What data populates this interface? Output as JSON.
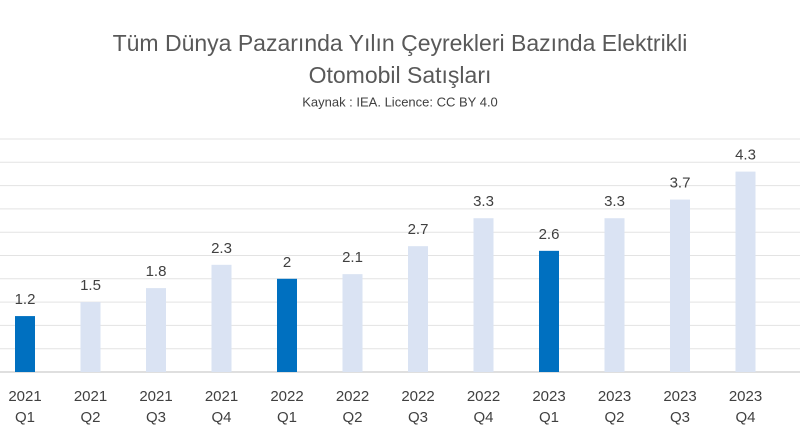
{
  "chart_data": {
    "type": "bar",
    "title": [
      "Tüm Dünya Pazarında Yılın Çeyrekleri Bazında Elektrikli",
      "Otomobil Satışları"
    ],
    "subtitle": "Kaynak : IEA. Licence: CC BY 4.0",
    "categories": [
      [
        "2021",
        "Q1"
      ],
      [
        "2021",
        "Q2"
      ],
      [
        "2021",
        "Q3"
      ],
      [
        "2021",
        "Q4"
      ],
      [
        "2022",
        "Q1"
      ],
      [
        "2022",
        "Q2"
      ],
      [
        "2022",
        "Q3"
      ],
      [
        "2022",
        "Q4"
      ],
      [
        "2023",
        "Q1"
      ],
      [
        "2023",
        "Q2"
      ],
      [
        "2023",
        "Q3"
      ],
      [
        "2023",
        "Q4"
      ]
    ],
    "values": [
      1.2,
      1.5,
      1.8,
      2.3,
      2,
      2.1,
      2.7,
      3.3,
      2.6,
      3.3,
      3.7,
      4.3
    ],
    "colors": [
      "#0070c0",
      "#dae3f3",
      "#dae3f3",
      "#dae3f3",
      "#0070c0",
      "#dae3f3",
      "#dae3f3",
      "#dae3f3",
      "#0070c0",
      "#dae3f3",
      "#dae3f3",
      "#dae3f3"
    ],
    "ylim": [
      0,
      5
    ],
    "yticks": [
      0,
      0.5,
      1,
      1.5,
      2,
      2.5,
      3,
      3.5,
      4,
      4.5,
      5
    ],
    "grid": true
  }
}
